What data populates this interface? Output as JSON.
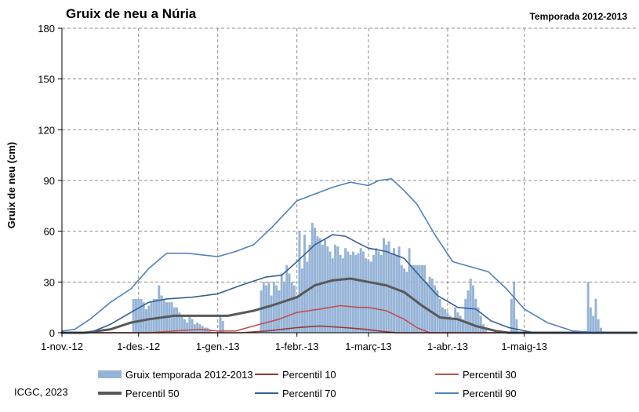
{
  "header": {
    "title": "Gruix de neu a Núria",
    "season": "Temporada 2012-2013"
  },
  "footer": {
    "credit": "ICGC, 2023"
  },
  "chart_data": {
    "type": "bar",
    "title": "Gruix de neu a Núria",
    "subtitle": "Temporada 2012-2013",
    "xlabel": "",
    "ylabel": "Gruix de neu (cm)",
    "ylim": [
      0,
      180
    ],
    "yticks": [
      0,
      30,
      60,
      90,
      120,
      150,
      180
    ],
    "xlim": [
      "2012-11-01",
      "2013-06-14"
    ],
    "xticks": [
      {
        "date": "2012-11-01",
        "label": "1-nov.-12"
      },
      {
        "date": "2012-12-01",
        "label": "1-des.-12"
      },
      {
        "date": "2013-01-01",
        "label": "1-gen.-13"
      },
      {
        "date": "2013-02-01",
        "label": "1-febr.-13"
      },
      {
        "date": "2013-03-01",
        "label": "1-març-13"
      },
      {
        "date": "2013-04-01",
        "label": "1-abr.-13"
      },
      {
        "date": "2013-05-01",
        "label": "1-maig-13"
      }
    ],
    "grid": true,
    "legend_position": "bottom",
    "bar_series": {
      "name": "Gruix temporada 2012-2013",
      "color": "#95b3d7",
      "points": [
        [
          "2012-11-29",
          20
        ],
        [
          "2012-11-30",
          20
        ],
        [
          "2012-12-01",
          20
        ],
        [
          "2012-12-02",
          20
        ],
        [
          "2012-12-03",
          18
        ],
        [
          "2012-12-04",
          14
        ],
        [
          "2012-12-05",
          16
        ],
        [
          "2012-12-06",
          18
        ],
        [
          "2012-12-07",
          20
        ],
        [
          "2012-12-08",
          20
        ],
        [
          "2012-12-09",
          28
        ],
        [
          "2012-12-10",
          22
        ],
        [
          "2012-12-11",
          20
        ],
        [
          "2012-12-12",
          18
        ],
        [
          "2012-12-13",
          18
        ],
        [
          "2012-12-14",
          18
        ],
        [
          "2012-12-15",
          15
        ],
        [
          "2012-12-16",
          15
        ],
        [
          "2012-12-17",
          12
        ],
        [
          "2012-12-18",
          10
        ],
        [
          "2012-12-19",
          8
        ],
        [
          "2012-12-20",
          6
        ],
        [
          "2012-12-21",
          10
        ],
        [
          "2012-12-22",
          8
        ],
        [
          "2012-12-23",
          5
        ],
        [
          "2012-12-24",
          6
        ],
        [
          "2012-12-25",
          5
        ],
        [
          "2012-12-26",
          4
        ],
        [
          "2012-12-27",
          3
        ],
        [
          "2012-12-28",
          3
        ],
        [
          "2012-12-29",
          2
        ],
        [
          "2013-01-02",
          10
        ],
        [
          "2013-01-03",
          7
        ],
        [
          "2013-01-18",
          25
        ],
        [
          "2013-01-19",
          30
        ],
        [
          "2013-01-20",
          28
        ],
        [
          "2013-01-21",
          30
        ],
        [
          "2013-01-22",
          22
        ],
        [
          "2013-01-23",
          30
        ],
        [
          "2013-01-24",
          28
        ],
        [
          "2013-01-25",
          25
        ],
        [
          "2013-01-26",
          35
        ],
        [
          "2013-01-27",
          30
        ],
        [
          "2013-01-28",
          40
        ],
        [
          "2013-01-29",
          35
        ],
        [
          "2013-01-30",
          30
        ],
        [
          "2013-01-31",
          28
        ],
        [
          "2013-02-01",
          22
        ],
        [
          "2013-02-02",
          60
        ],
        [
          "2013-02-03",
          38
        ],
        [
          "2013-02-04",
          58
        ],
        [
          "2013-02-05",
          42
        ],
        [
          "2013-02-06",
          52
        ],
        [
          "2013-02-07",
          65
        ],
        [
          "2013-02-08",
          62
        ],
        [
          "2013-02-09",
          57
        ],
        [
          "2013-02-10",
          56
        ],
        [
          "2013-02-11",
          52
        ],
        [
          "2013-02-12",
          55
        ],
        [
          "2013-02-13",
          51
        ],
        [
          "2013-02-14",
          48
        ],
        [
          "2013-02-15",
          44
        ],
        [
          "2013-02-16",
          52
        ],
        [
          "2013-02-17",
          51
        ],
        [
          "2013-02-18",
          46
        ],
        [
          "2013-02-19",
          44
        ],
        [
          "2013-02-20",
          50
        ],
        [
          "2013-02-21",
          48
        ],
        [
          "2013-02-22",
          46
        ],
        [
          "2013-02-23",
          48
        ],
        [
          "2013-02-24",
          46
        ],
        [
          "2013-02-25",
          47
        ],
        [
          "2013-02-26",
          50
        ],
        [
          "2013-02-27",
          48
        ],
        [
          "2013-02-28",
          44
        ],
        [
          "2013-03-01",
          43
        ],
        [
          "2013-03-02",
          42
        ],
        [
          "2013-03-03",
          46
        ],
        [
          "2013-03-04",
          50
        ],
        [
          "2013-03-05",
          48
        ],
        [
          "2013-03-06",
          46
        ],
        [
          "2013-03-07",
          56
        ],
        [
          "2013-03-08",
          52
        ],
        [
          "2013-03-09",
          54
        ],
        [
          "2013-03-10",
          47
        ],
        [
          "2013-03-11",
          50
        ],
        [
          "2013-03-12",
          46
        ],
        [
          "2013-03-13",
          51
        ],
        [
          "2013-03-14",
          40
        ],
        [
          "2013-03-15",
          38
        ],
        [
          "2013-03-16",
          36
        ],
        [
          "2013-03-17",
          50
        ],
        [
          "2013-03-18",
          40
        ],
        [
          "2013-03-19",
          40
        ],
        [
          "2013-03-20",
          40
        ],
        [
          "2013-03-21",
          40
        ],
        [
          "2013-03-22",
          40
        ],
        [
          "2013-03-23",
          40
        ],
        [
          "2013-03-24",
          30
        ],
        [
          "2013-03-25",
          33
        ],
        [
          "2013-03-26",
          32
        ],
        [
          "2013-03-27",
          28
        ],
        [
          "2013-03-28",
          25
        ],
        [
          "2013-03-29",
          20
        ],
        [
          "2013-03-30",
          15
        ],
        [
          "2013-03-31",
          14
        ],
        [
          "2013-04-01",
          12
        ],
        [
          "2013-04-02",
          10
        ],
        [
          "2013-04-03",
          8
        ],
        [
          "2013-04-04",
          15
        ],
        [
          "2013-04-05",
          12
        ],
        [
          "2013-04-06",
          10
        ],
        [
          "2013-04-07",
          8
        ],
        [
          "2013-04-08",
          20
        ],
        [
          "2013-04-09",
          25
        ],
        [
          "2013-04-10",
          32
        ],
        [
          "2013-04-11",
          28
        ],
        [
          "2013-04-12",
          20
        ],
        [
          "2013-04-13",
          15
        ],
        [
          "2013-04-14",
          10
        ],
        [
          "2013-04-15",
          5
        ],
        [
          "2013-04-16",
          3
        ],
        [
          "2013-04-26",
          20
        ],
        [
          "2013-04-27",
          30
        ],
        [
          "2013-04-28",
          8
        ],
        [
          "2013-05-26",
          30
        ],
        [
          "2013-05-27",
          15
        ],
        [
          "2013-05-28",
          10
        ],
        [
          "2013-05-29",
          20
        ],
        [
          "2013-05-30",
          8
        ],
        [
          "2013-05-31",
          3
        ]
      ]
    },
    "series": [
      {
        "name": "Percentil 10",
        "color": "#953735",
        "width": 1.6,
        "points": [
          [
            "2012-11-01",
            0
          ],
          [
            "2013-01-10",
            0
          ],
          [
            "2013-01-20",
            1
          ],
          [
            "2013-02-01",
            3
          ],
          [
            "2013-02-10",
            4
          ],
          [
            "2013-02-20",
            3
          ],
          [
            "2013-02-28",
            2
          ],
          [
            "2013-03-05",
            1
          ],
          [
            "2013-03-12",
            0
          ],
          [
            "2013-06-14",
            0
          ]
        ]
      },
      {
        "name": "Percentil 30",
        "color": "#c0504d",
        "width": 1.6,
        "points": [
          [
            "2012-11-01",
            0
          ],
          [
            "2012-12-05",
            0
          ],
          [
            "2012-12-15",
            1
          ],
          [
            "2012-12-25",
            2
          ],
          [
            "2013-01-01",
            1
          ],
          [
            "2013-01-08",
            1
          ],
          [
            "2013-01-15",
            4
          ],
          [
            "2013-01-25",
            8
          ],
          [
            "2013-02-01",
            12
          ],
          [
            "2013-02-10",
            14
          ],
          [
            "2013-02-18",
            16
          ],
          [
            "2013-02-25",
            15
          ],
          [
            "2013-03-01",
            15
          ],
          [
            "2013-03-08",
            13
          ],
          [
            "2013-03-15",
            8
          ],
          [
            "2013-03-20",
            3
          ],
          [
            "2013-03-25",
            0
          ],
          [
            "2013-06-14",
            0
          ]
        ]
      },
      {
        "name": "Percentil 50",
        "color": "#595959",
        "width": 3,
        "points": [
          [
            "2012-11-01",
            0
          ],
          [
            "2012-11-10",
            0
          ],
          [
            "2012-11-20",
            2
          ],
          [
            "2012-11-28",
            6
          ],
          [
            "2012-12-05",
            8
          ],
          [
            "2012-12-15",
            10
          ],
          [
            "2012-12-25",
            10
          ],
          [
            "2013-01-05",
            10
          ],
          [
            "2013-01-15",
            13
          ],
          [
            "2013-01-22",
            16
          ],
          [
            "2013-02-01",
            21
          ],
          [
            "2013-02-08",
            28
          ],
          [
            "2013-02-15",
            31
          ],
          [
            "2013-02-22",
            32
          ],
          [
            "2013-03-01",
            30
          ],
          [
            "2013-03-08",
            28
          ],
          [
            "2013-03-15",
            24
          ],
          [
            "2013-03-22",
            16
          ],
          [
            "2013-03-29",
            9
          ],
          [
            "2013-04-05",
            8
          ],
          [
            "2013-04-12",
            4
          ],
          [
            "2013-04-20",
            1
          ],
          [
            "2013-04-25",
            0
          ],
          [
            "2013-06-14",
            0
          ]
        ]
      },
      {
        "name": "Percentil 70",
        "color": "#366092",
        "width": 1.6,
        "points": [
          [
            "2012-11-01",
            0
          ],
          [
            "2012-11-12",
            0
          ],
          [
            "2012-11-20",
            5
          ],
          [
            "2012-11-28",
            12
          ],
          [
            "2012-12-05",
            18
          ],
          [
            "2012-12-12",
            20
          ],
          [
            "2012-12-22",
            21
          ],
          [
            "2013-01-01",
            23
          ],
          [
            "2013-01-10",
            28
          ],
          [
            "2013-01-20",
            33
          ],
          [
            "2013-01-26",
            34
          ],
          [
            "2013-02-01",
            42
          ],
          [
            "2013-02-08",
            52
          ],
          [
            "2013-02-15",
            58
          ],
          [
            "2013-02-20",
            57
          ],
          [
            "2013-02-25",
            53
          ],
          [
            "2013-03-01",
            50
          ],
          [
            "2013-03-08",
            48
          ],
          [
            "2013-03-15",
            44
          ],
          [
            "2013-03-22",
            32
          ],
          [
            "2013-03-28",
            22
          ],
          [
            "2013-04-05",
            15
          ],
          [
            "2013-04-12",
            14
          ],
          [
            "2013-04-18",
            7
          ],
          [
            "2013-04-25",
            3
          ],
          [
            "2013-05-05",
            0
          ],
          [
            "2013-06-14",
            0
          ]
        ]
      },
      {
        "name": "Percentil 90",
        "color": "#4f81bd",
        "width": 1.6,
        "points": [
          [
            "2012-11-01",
            1
          ],
          [
            "2012-11-06",
            2
          ],
          [
            "2012-11-12",
            8
          ],
          [
            "2012-11-20",
            18
          ],
          [
            "2012-11-28",
            26
          ],
          [
            "2012-12-05",
            38
          ],
          [
            "2012-12-12",
            47
          ],
          [
            "2012-12-20",
            47
          ],
          [
            "2013-01-01",
            45
          ],
          [
            "2013-01-08",
            48
          ],
          [
            "2013-01-15",
            52
          ],
          [
            "2013-01-22",
            62
          ],
          [
            "2013-02-01",
            78
          ],
          [
            "2013-02-08",
            82
          ],
          [
            "2013-02-15",
            86
          ],
          [
            "2013-02-22",
            89
          ],
          [
            "2013-03-01",
            87
          ],
          [
            "2013-03-05",
            90
          ],
          [
            "2013-03-10",
            91
          ],
          [
            "2013-03-15",
            84
          ],
          [
            "2013-03-20",
            76
          ],
          [
            "2013-03-27",
            58
          ],
          [
            "2013-04-03",
            42
          ],
          [
            "2013-04-10",
            39
          ],
          [
            "2013-04-17",
            36
          ],
          [
            "2013-04-24",
            26
          ],
          [
            "2013-05-01",
            14
          ],
          [
            "2013-05-10",
            6
          ],
          [
            "2013-05-20",
            1
          ],
          [
            "2013-06-01",
            0
          ],
          [
            "2013-06-14",
            0
          ]
        ]
      }
    ],
    "legend": [
      {
        "label": "Gruix temporada 2012-2013",
        "kind": "bar",
        "color": "#95b3d7"
      },
      {
        "label": "Percentil 10",
        "kind": "line",
        "color": "#953735",
        "width": 2
      },
      {
        "label": "Percentil 30",
        "kind": "line",
        "color": "#c0504d",
        "width": 2
      },
      {
        "label": "Percentil 50",
        "kind": "line",
        "color": "#595959",
        "width": 4
      },
      {
        "label": "Percentil 70",
        "kind": "line",
        "color": "#366092",
        "width": 2
      },
      {
        "label": "Percentil 90",
        "kind": "line",
        "color": "#4f81bd",
        "width": 2
      }
    ]
  }
}
